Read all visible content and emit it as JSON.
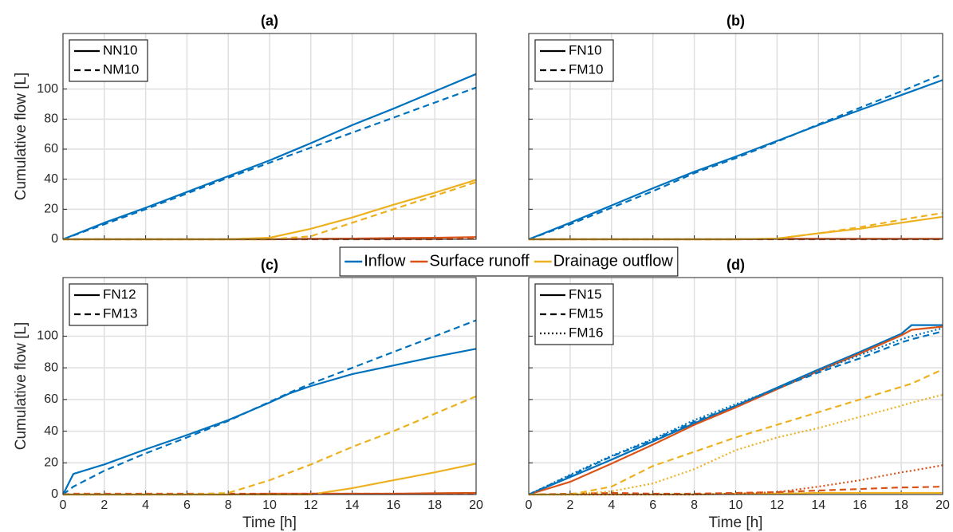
{
  "legend": [
    {
      "name": "Inflow",
      "color": "#0072bd"
    },
    {
      "name": "Surface runoff",
      "color": "#d95319"
    },
    {
      "name": "Drainage outflow",
      "color": "#edb120"
    }
  ],
  "chart_data": [
    {
      "type": "line",
      "title": "(a)",
      "ylabel": "Cumulative flow [L]",
      "x": [
        0,
        2,
        4,
        6,
        8,
        10,
        12,
        14,
        16,
        18,
        20
      ],
      "xlim": [
        0,
        20
      ],
      "ylim": [
        0,
        137
      ],
      "xticks": [
        0,
        2,
        4,
        6,
        8,
        10,
        12,
        14,
        16,
        18,
        20
      ],
      "yticks": [
        0,
        20,
        40,
        60,
        80,
        100
      ],
      "show_xticklabels": false,
      "show_yticklabels": true,
      "grid": true,
      "cases": [
        {
          "name": "NN10",
          "dash": "solid",
          "series": [
            {
              "color": "#0072bd",
              "values": [
                0,
                11,
                21,
                31.5,
                42,
                52.5,
                64,
                76,
                87,
                98.5,
                110
              ]
            },
            {
              "color": "#d95319",
              "values": [
                0,
                0,
                0,
                0,
                0,
                0,
                0.3,
                0.5,
                0.8,
                1,
                1.5
              ]
            },
            {
              "color": "#edb120",
              "values": [
                0,
                0,
                0,
                0,
                0,
                1,
                7,
                14.5,
                23,
                31,
                39.5
              ]
            }
          ]
        },
        {
          "name": "NM10",
          "dash": "dashed",
          "series": [
            {
              "color": "#0072bd",
              "values": [
                0,
                10,
                20,
                30.5,
                41,
                51,
                61,
                71,
                81,
                91,
                101
              ]
            },
            {
              "color": "#d95319",
              "values": [
                0,
                0,
                0,
                0,
                0,
                0,
                0,
                0,
                0,
                0,
                0.3
              ]
            },
            {
              "color": "#edb120",
              "values": [
                0,
                0,
                0,
                0,
                0,
                0,
                2,
                11,
                20,
                29,
                38
              ]
            }
          ]
        }
      ]
    },
    {
      "type": "line",
      "title": "(b)",
      "x": [
        0,
        2,
        4,
        6,
        8,
        10,
        12,
        14,
        16,
        18,
        20
      ],
      "xlim": [
        0,
        20
      ],
      "ylim": [
        0,
        137
      ],
      "xticks": [
        0,
        2,
        4,
        6,
        8,
        10,
        12,
        14,
        16,
        18,
        20
      ],
      "yticks": [
        0,
        20,
        40,
        60,
        80,
        100
      ],
      "show_xticklabels": false,
      "show_yticklabels": false,
      "grid": true,
      "cases": [
        {
          "name": "FN10",
          "dash": "solid",
          "series": [
            {
              "color": "#0072bd",
              "values": [
                0,
                11,
                22.5,
                34,
                45,
                55,
                65.5,
                76,
                86,
                96,
                106
              ]
            },
            {
              "color": "#d95319",
              "values": [
                0,
                0,
                0,
                0,
                0,
                0,
                0.3,
                0.3,
                0.3,
                0.3,
                0.3
              ]
            },
            {
              "color": "#edb120",
              "values": [
                0,
                0,
                0,
                0,
                0,
                0,
                0.5,
                4,
                7,
                11,
                15
              ]
            }
          ]
        },
        {
          "name": "FM10",
          "dash": "dashed",
          "series": [
            {
              "color": "#0072bd",
              "values": [
                0,
                10,
                21,
                32,
                44,
                54,
                65,
                76.5,
                87.5,
                98.5,
                110
              ]
            },
            {
              "color": "#d95319",
              "values": [
                0,
                0,
                0,
                0,
                0,
                0,
                0,
                0,
                0,
                0,
                0
              ]
            },
            {
              "color": "#edb120",
              "values": [
                0,
                0,
                0,
                0,
                0,
                0,
                0.5,
                4,
                8,
                13,
                17.5
              ]
            }
          ]
        }
      ]
    },
    {
      "type": "line",
      "title": "(c)",
      "ylabel": "Cumulative flow [L]",
      "xlabel": "Time [h]",
      "x": [
        0,
        0.5,
        2,
        4,
        6,
        8,
        10,
        11,
        12,
        14,
        16,
        18,
        20
      ],
      "xlim": [
        0,
        20
      ],
      "ylim": [
        0,
        137
      ],
      "xticks": [
        0,
        2,
        4,
        6,
        8,
        10,
        12,
        14,
        16,
        18,
        20
      ],
      "yticks": [
        0,
        20,
        40,
        60,
        80,
        100
      ],
      "show_xticklabels": true,
      "show_yticklabels": true,
      "grid": true,
      "cases": [
        {
          "name": "FN12",
          "dash": "solid",
          "series": [
            {
              "color": "#0072bd",
              "values": [
                0,
                13,
                19,
                28.5,
                37.5,
                47,
                58,
                64,
                68.5,
                76,
                81.5,
                87,
                92
              ]
            },
            {
              "color": "#d95319",
              "values": [
                0,
                0,
                0,
                0,
                0,
                0,
                0.5,
                0.5,
                0.5,
                0.5,
                0.5,
                0.8,
                1
              ]
            },
            {
              "color": "#edb120",
              "values": [
                0,
                0,
                0,
                0,
                0,
                0,
                0,
                0,
                0,
                4,
                9,
                14,
                19.5
              ]
            }
          ]
        },
        {
          "name": "FM13",
          "dash": "dashed",
          "series": [
            {
              "color": "#0072bd",
              "values": [
                0,
                5,
                15,
                26,
                36,
                46.5,
                58.5,
                64.5,
                70,
                80,
                90,
                100,
                110
              ]
            },
            {
              "color": "#d95319",
              "values": [
                0,
                0.5,
                0.5,
                0.5,
                0.5,
                0.5,
                0.5,
                0.5,
                0.5,
                0.5,
                0.5,
                0.5,
                0.5
              ]
            },
            {
              "color": "#edb120",
              "values": [
                0,
                0,
                0,
                0,
                0,
                1,
                9,
                14,
                19,
                30,
                40,
                51,
                62
              ]
            }
          ]
        }
      ]
    },
    {
      "type": "line",
      "title": "(d)",
      "xlabel": "Time [h]",
      "x": [
        0,
        2,
        4,
        6,
        8,
        10,
        12,
        14,
        16,
        18,
        18.5,
        20
      ],
      "xlim": [
        0,
        20
      ],
      "ylim": [
        0,
        137
      ],
      "xticks": [
        0,
        2,
        4,
        6,
        8,
        10,
        12,
        14,
        16,
        18,
        20
      ],
      "yticks": [
        0,
        20,
        40,
        60,
        80,
        100
      ],
      "show_xticklabels": true,
      "show_yticklabels": false,
      "grid": true,
      "cases": [
        {
          "name": "FN15",
          "dash": "solid",
          "series": [
            {
              "color": "#0072bd",
              "values": [
                0,
                11,
                22,
                33.5,
                45,
                56,
                67.5,
                79,
                90,
                101.5,
                107,
                107
              ]
            },
            {
              "color": "#d95319",
              "values": [
                0,
                8,
                19.5,
                31.5,
                44,
                55,
                66.5,
                78,
                89,
                100.5,
                104,
                106
              ]
            },
            {
              "color": "#edb120",
              "values": [
                0,
                0,
                0,
                0,
                0,
                0.5,
                0.5,
                1,
                1,
                1,
                1,
                1
              ]
            }
          ]
        },
        {
          "name": "FM15",
          "dash": "dashed",
          "series": [
            {
              "color": "#0072bd",
              "values": [
                0,
                12,
                24,
                34.5,
                46,
                56,
                67,
                77,
                86,
                96,
                98,
                103
              ]
            },
            {
              "color": "#d95319",
              "values": [
                0,
                0.5,
                1,
                0.5,
                0.5,
                1,
                1.5,
                2.5,
                3.5,
                4.5,
                4.5,
                5
              ]
            },
            {
              "color": "#edb120",
              "values": [
                0,
                0,
                5,
                18,
                27,
                36,
                44,
                52,
                60,
                68,
                70,
                79
              ]
            }
          ]
        },
        {
          "name": "FM16",
          "dash": "dotted",
          "series": [
            {
              "color": "#0072bd",
              "values": [
                0,
                12.5,
                24.5,
                35,
                47,
                57,
                67,
                78,
                88,
                98,
                100,
                105
              ]
            },
            {
              "color": "#d95319",
              "values": [
                0,
                0,
                0,
                0,
                0,
                0.5,
                1.5,
                5,
                9,
                14,
                15,
                18.5
              ]
            },
            {
              "color": "#edb120",
              "values": [
                0,
                0,
                2,
                7,
                16,
                28,
                36,
                42,
                49,
                56,
                58,
                63
              ]
            }
          ]
        }
      ]
    }
  ]
}
